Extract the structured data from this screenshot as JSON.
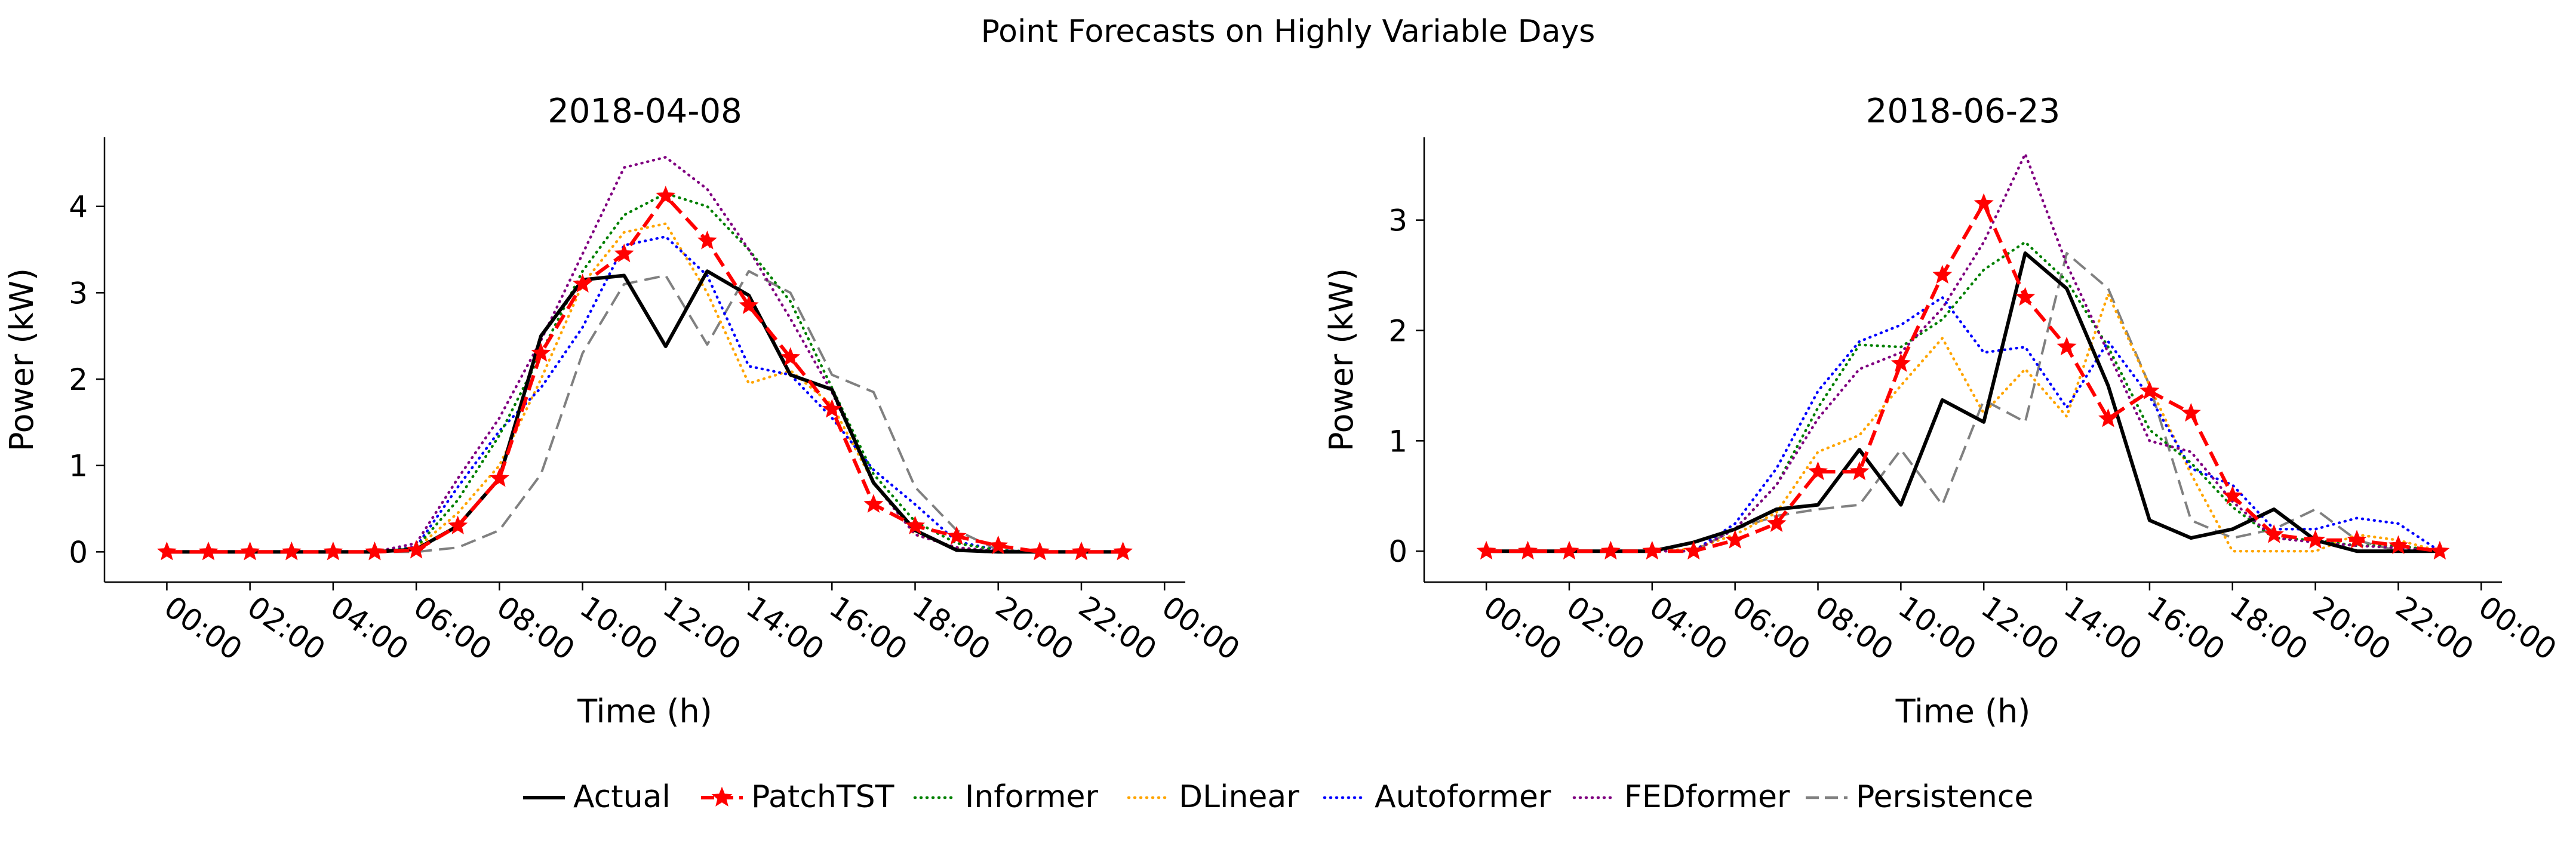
{
  "figure": {
    "suptitle": "Point Forecasts on Highly Variable Days"
  },
  "legend": {
    "placement": "bottom-center",
    "entries": [
      {
        "name": "Actual",
        "color": "#000000",
        "style": "solid",
        "marker": "none"
      },
      {
        "name": "PatchTST",
        "color": "#ff0000",
        "style": "dashed",
        "marker": "star"
      },
      {
        "name": "Informer",
        "color": "#008000",
        "style": "dotted",
        "marker": "none"
      },
      {
        "name": "DLinear",
        "color": "#ffa500",
        "style": "dotted",
        "marker": "none"
      },
      {
        "name": "Autoformer",
        "color": "#0000ff",
        "style": "dotted",
        "marker": "none"
      },
      {
        "name": "FEDformer",
        "color": "#800080",
        "style": "dotted",
        "marker": "none"
      },
      {
        "name": "Persistence",
        "color": "#808080",
        "style": "dashed",
        "marker": "none"
      }
    ]
  },
  "chart_data": [
    {
      "type": "line",
      "title": "2018-04-08",
      "xlabel": "Time (h)",
      "ylabel": "Power (kW)",
      "xlim": [
        -1.5,
        24.5
      ],
      "ylim": [
        -0.35,
        4.8
      ],
      "x_ticks": [
        0,
        2,
        4,
        6,
        8,
        10,
        12,
        14,
        16,
        18,
        20,
        22,
        24
      ],
      "x_tick_labels": [
        "00:00",
        "02:00",
        "04:00",
        "06:00",
        "08:00",
        "10:00",
        "12:00",
        "14:00",
        "16:00",
        "18:00",
        "20:00",
        "22:00",
        "00:00"
      ],
      "y_ticks": [
        0,
        1,
        2,
        3,
        4
      ],
      "y_tick_labels": [
        "0",
        "1",
        "2",
        "3",
        "4"
      ],
      "grid": false,
      "x": [
        0,
        1,
        2,
        3,
        4,
        5,
        6,
        7,
        8,
        9,
        10,
        11,
        12,
        13,
        14,
        15,
        16,
        17,
        18,
        19,
        20,
        21,
        22,
        23
      ],
      "series": [
        {
          "name": "Actual",
          "values": [
            0,
            0,
            0,
            0,
            0,
            0,
            0.03,
            0.3,
            0.85,
            2.5,
            3.15,
            3.2,
            2.38,
            3.25,
            2.97,
            2.05,
            1.88,
            0.8,
            0.25,
            0.02,
            0,
            0,
            0,
            0
          ]
        },
        {
          "name": "PatchTST",
          "values": [
            0,
            0,
            0,
            0,
            0,
            0,
            0.02,
            0.3,
            0.85,
            2.3,
            3.1,
            3.45,
            4.12,
            3.6,
            2.85,
            2.25,
            1.65,
            0.55,
            0.3,
            0.18,
            0.07,
            0,
            0,
            0
          ]
        },
        {
          "name": "Informer",
          "values": [
            0,
            0,
            0,
            0,
            0,
            0,
            0.05,
            0.6,
            1.35,
            2.3,
            3.25,
            3.9,
            4.15,
            4.0,
            3.5,
            2.9,
            1.9,
            0.9,
            0.35,
            0.1,
            0.02,
            0,
            0,
            0
          ]
        },
        {
          "name": "DLinear",
          "values": [
            0,
            0,
            0,
            0,
            0,
            0,
            0.04,
            0.45,
            1.0,
            2.0,
            3.1,
            3.7,
            3.8,
            3.0,
            1.95,
            2.1,
            1.7,
            0.8,
            0.2,
            0.05,
            0,
            0,
            0,
            0
          ]
        },
        {
          "name": "Autoformer",
          "values": [
            0,
            0,
            0,
            0,
            0,
            0,
            0.06,
            0.75,
            1.4,
            1.9,
            2.6,
            3.55,
            3.65,
            3.2,
            2.15,
            2.05,
            1.55,
            0.95,
            0.55,
            0.12,
            0.02,
            0,
            0,
            0
          ]
        },
        {
          "name": "FEDformer",
          "values": [
            0,
            0,
            0,
            0,
            0,
            0,
            0.1,
            0.85,
            1.55,
            2.45,
            3.45,
            4.45,
            4.57,
            4.2,
            3.5,
            2.7,
            1.85,
            0.8,
            0.2,
            0.05,
            0.01,
            0,
            0,
            0
          ]
        },
        {
          "name": "Persistence",
          "values": [
            0,
            0,
            0,
            0,
            0,
            0,
            0,
            0.05,
            0.25,
            0.9,
            2.3,
            3.1,
            3.2,
            2.4,
            3.25,
            3.0,
            2.05,
            1.85,
            0.75,
            0.25,
            0.02,
            0,
            0,
            0
          ]
        }
      ]
    },
    {
      "type": "line",
      "title": "2018-06-23",
      "xlabel": "Time (h)",
      "ylabel": "Power (kW)",
      "xlim": [
        -1.5,
        24.5
      ],
      "ylim": [
        -0.28,
        3.75
      ],
      "x_ticks": [
        0,
        2,
        4,
        6,
        8,
        10,
        12,
        14,
        16,
        18,
        20,
        22,
        24
      ],
      "x_tick_labels": [
        "00:00",
        "02:00",
        "04:00",
        "06:00",
        "08:00",
        "10:00",
        "12:00",
        "14:00",
        "16:00",
        "18:00",
        "20:00",
        "22:00",
        "00:00"
      ],
      "y_ticks": [
        0,
        1,
        2,
        3
      ],
      "y_tick_labels": [
        "0",
        "1",
        "2",
        "3"
      ],
      "grid": false,
      "x": [
        0,
        1,
        2,
        3,
        4,
        5,
        6,
        7,
        8,
        9,
        10,
        11,
        12,
        13,
        14,
        15,
        16,
        17,
        18,
        19,
        20,
        21,
        22,
        23
      ],
      "series": [
        {
          "name": "Actual",
          "values": [
            0,
            0,
            0,
            0,
            0,
            0.08,
            0.2,
            0.38,
            0.42,
            0.92,
            0.42,
            1.37,
            1.17,
            2.7,
            2.38,
            1.5,
            0.28,
            0.12,
            0.2,
            0.38,
            0.1,
            0,
            0,
            0
          ]
        },
        {
          "name": "PatchTST",
          "values": [
            0,
            0,
            0,
            0,
            0,
            0,
            0.1,
            0.25,
            0.72,
            0.72,
            1.7,
            2.5,
            3.15,
            2.3,
            1.85,
            1.2,
            1.45,
            1.25,
            0.5,
            0.15,
            0.1,
            0.1,
            0.05,
            0
          ]
        },
        {
          "name": "Informer",
          "values": [
            0,
            0,
            0,
            0,
            0,
            0,
            0.2,
            0.6,
            1.3,
            1.87,
            1.85,
            2.1,
            2.55,
            2.8,
            2.45,
            1.85,
            1.1,
            0.8,
            0.4,
            0.12,
            0.1,
            0.05,
            0.05,
            0
          ]
        },
        {
          "name": "DLinear",
          "values": [
            0,
            0,
            0,
            0,
            0,
            0.02,
            0.15,
            0.35,
            0.9,
            1.05,
            1.5,
            1.93,
            1.25,
            1.65,
            1.22,
            2.33,
            1.5,
            0.7,
            0,
            0,
            0,
            0.15,
            0.1,
            0
          ]
        },
        {
          "name": "Autoformer",
          "values": [
            0,
            0,
            0,
            0,
            0,
            0,
            0.25,
            0.75,
            1.45,
            1.9,
            2.05,
            2.3,
            1.8,
            1.85,
            1.3,
            1.9,
            1.4,
            0.75,
            0.6,
            0.2,
            0.2,
            0.3,
            0.25,
            0
          ]
        },
        {
          "name": "FEDformer",
          "values": [
            0,
            0,
            0,
            0,
            0,
            0,
            0.2,
            0.6,
            1.2,
            1.65,
            1.8,
            2.2,
            2.8,
            3.6,
            2.6,
            1.8,
            1.0,
            0.9,
            0.45,
            0.12,
            0.08,
            0.05,
            0.03,
            0
          ]
        },
        {
          "name": "Persistence",
          "values": [
            0,
            0,
            0,
            0,
            0,
            0,
            0.2,
            0.32,
            0.38,
            0.42,
            0.92,
            0.42,
            1.37,
            1.17,
            2.7,
            2.38,
            1.5,
            0.28,
            0.12,
            0.2,
            0.38,
            0.1,
            0,
            0
          ]
        }
      ]
    }
  ]
}
